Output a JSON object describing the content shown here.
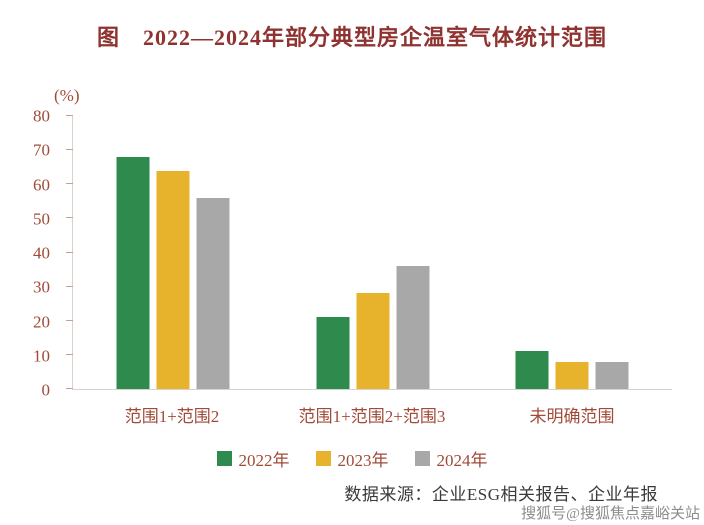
{
  "title": "图　2022—2024年部分典型房企温室气体统计范围",
  "source_note": "数据来源：企业ESG相关报告、企业年报",
  "watermark": "搜狐号@搜狐焦点嘉峪关站",
  "colors": {
    "title": "#8e3330",
    "axis_text": "#a04a38",
    "source_text": "#3a3a3a",
    "watermark": "#8c8c8c"
  },
  "chart_data": {
    "type": "bar",
    "title": "图 2022—2024年部分典型房企温室气体统计范围",
    "xlabel": "",
    "ylabel": "(%)",
    "ylim": [
      0,
      80
    ],
    "yticks": [
      0,
      10,
      20,
      30,
      40,
      50,
      60,
      70,
      80
    ],
    "grid": false,
    "legend_position": "bottom",
    "categories": [
      "范围1+范围2",
      "范围1+范围2+范围3",
      "未明确范围"
    ],
    "series": [
      {
        "name": "2022年",
        "color": "#2e8b4d",
        "values": [
          68,
          21,
          11
        ]
      },
      {
        "name": "2023年",
        "color": "#e8b32c",
        "values": [
          64,
          28,
          8
        ]
      },
      {
        "name": "2024年",
        "color": "#a8a8a8",
        "values": [
          56,
          36,
          8
        ]
      }
    ]
  }
}
